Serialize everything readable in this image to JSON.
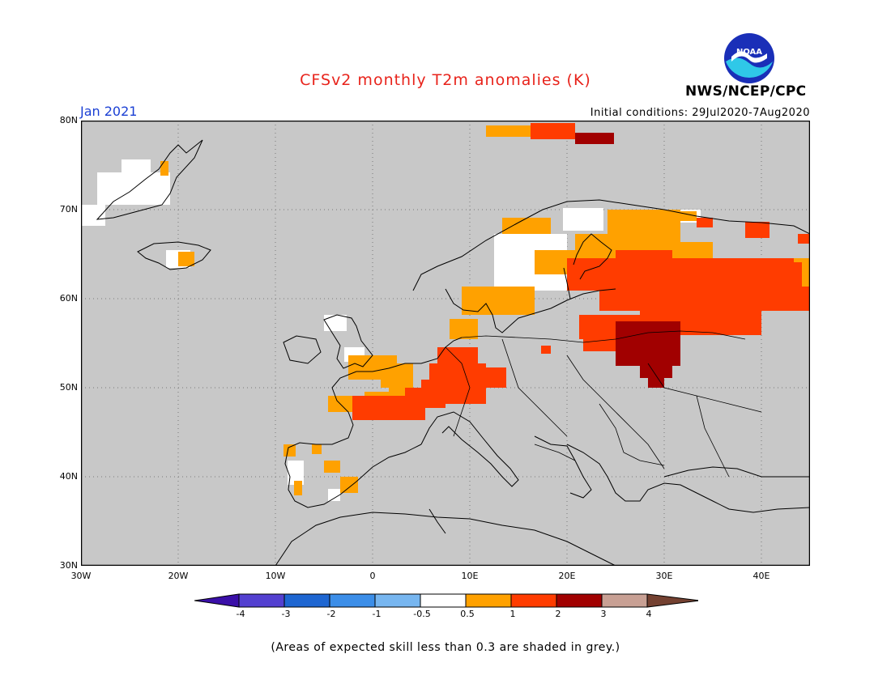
{
  "header": {
    "title": "CFSv2 monthly T2m anomalies (K)",
    "month": "Jan 2021",
    "initial_conditions": "Initial conditions: 29Jul2020-7Aug2020",
    "agency": "NWS/NCEP/CPC",
    "logo_text": "NOAA"
  },
  "map": {
    "lat_labels": [
      "80N",
      "70N",
      "60N",
      "50N",
      "40N",
      "30N"
    ],
    "lon_labels": [
      "30W",
      "20W",
      "10W",
      "0",
      "10E",
      "20E",
      "30E",
      "40E"
    ],
    "background_color": "#c8c8c8",
    "grid": true
  },
  "legend": {
    "labels": [
      "-4",
      "-3",
      "-2",
      "-1",
      "-0.5",
      "0.5",
      "1",
      "2",
      "3",
      "4"
    ],
    "colors": [
      "#3a0fa8",
      "#5340d0",
      "#1e66d1",
      "#3c8ee8",
      "#77b6f0",
      "#ffffff",
      "#ffa100",
      "#ff3c00",
      "#a10000",
      "#c8a094",
      "#744131"
    ]
  },
  "footnote": "(Areas of expected skill less than 0.3 are shaded in grey.)"
}
